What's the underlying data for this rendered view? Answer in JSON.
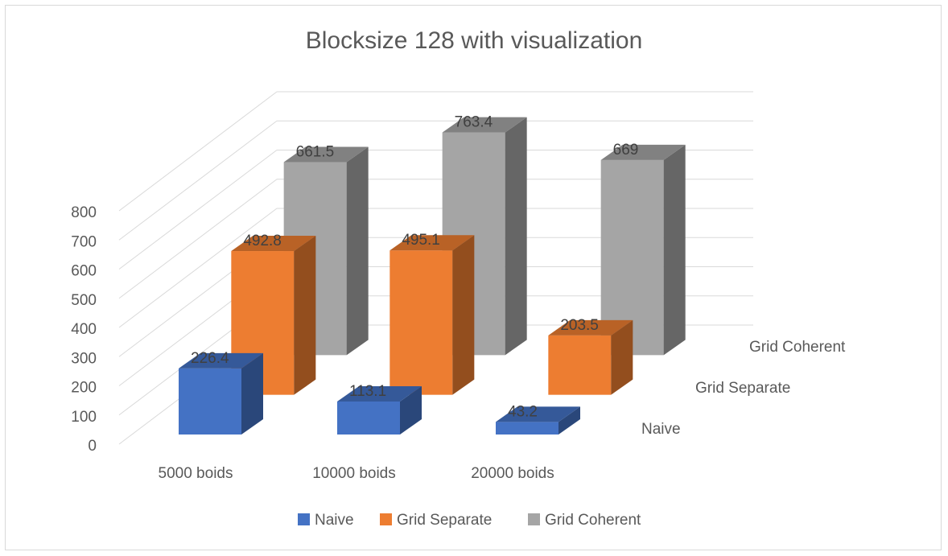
{
  "chart_data": {
    "type": "bar",
    "subtype": "3d-clustered-column",
    "title": "Blocksize 128 with visualization",
    "categories": [
      "5000 boids",
      "10000 boids",
      "20000 boids"
    ],
    "series": [
      {
        "name": "Naive",
        "values": [
          226.4,
          113.1,
          43.2
        ],
        "color": "#4472C4"
      },
      {
        "name": "Grid Separate",
        "values": [
          492.8,
          495.1,
          203.5
        ],
        "color": "#ED7D31"
      },
      {
        "name": "Grid Coherent",
        "values": [
          661.5,
          763.4,
          669
        ],
        "color": "#A5A5A5"
      }
    ],
    "yticks": [
      0,
      100,
      200,
      300,
      400,
      500,
      600,
      700,
      800
    ],
    "ylim": [
      0,
      800
    ],
    "grid": true,
    "legend_position": "bottom",
    "data_labels": true
  }
}
